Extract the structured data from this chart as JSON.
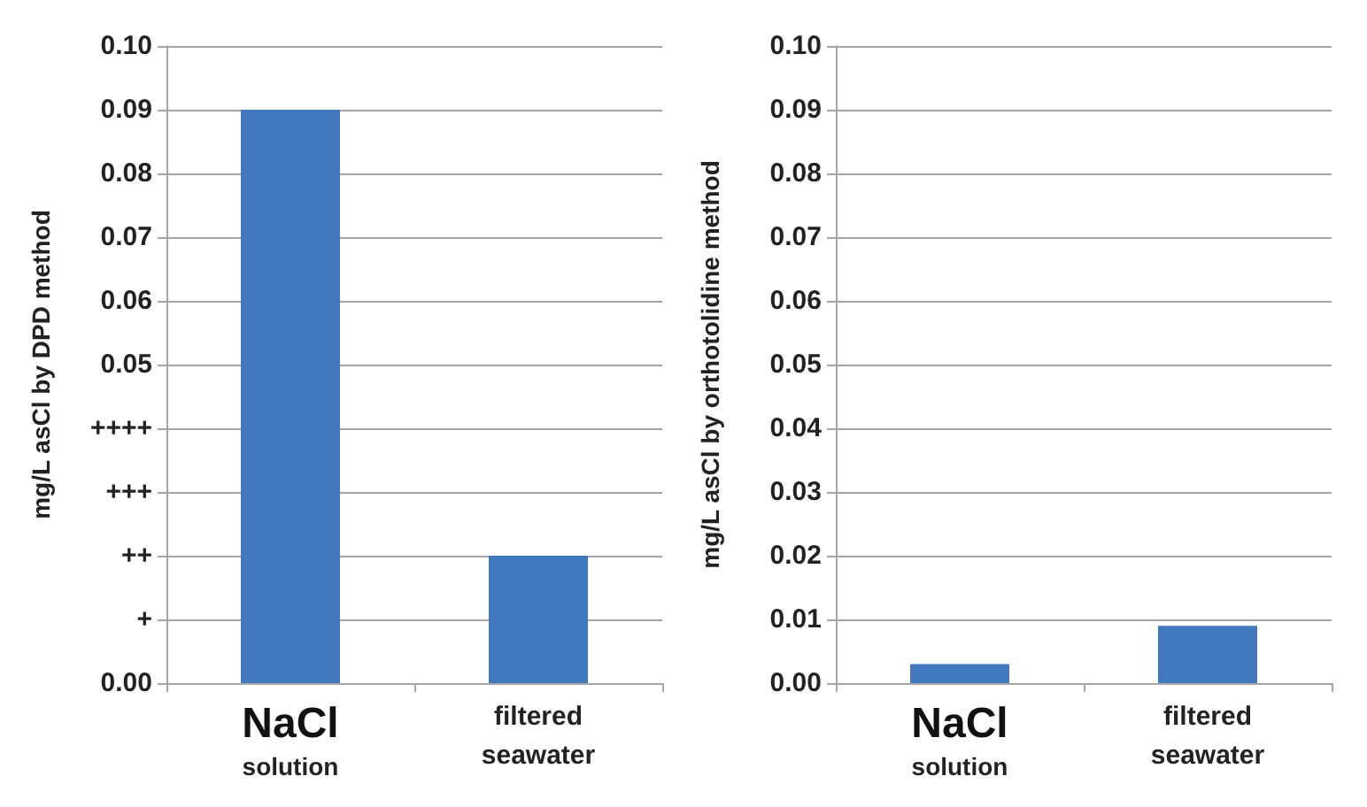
{
  "chart_data": [
    {
      "type": "bar",
      "ylabel": "mg/L asCl by DPD method",
      "categories": [
        "NaCl solution",
        "filtered seawater"
      ],
      "values": [
        0.09,
        0.02
      ],
      "color": "#4178be",
      "ylim": [
        0,
        0.1
      ],
      "yticks": [
        {
          "value": 0,
          "label": "0.00"
        },
        {
          "value": 0.01,
          "label": "+"
        },
        {
          "value": 0.02,
          "label": "++"
        },
        {
          "value": 0.03,
          "label": "+++"
        },
        {
          "value": 0.04,
          "label": "++++"
        },
        0.05,
        0.06,
        0.07,
        0.08,
        0.09,
        {
          "value": 0.1,
          "label": "0.10"
        }
      ],
      "grid": "y"
    },
    {
      "type": "bar",
      "ylabel": "mg/L asCl by orthotolidine method",
      "categories": [
        "NaCl solution",
        "filtered seawater"
      ],
      "values": [
        0.003,
        0.009
      ],
      "color": "#4178be",
      "ylim": [
        0,
        0.1
      ],
      "yticks": [
        {
          "value": 0,
          "label": "0.00"
        },
        0.01,
        0.02,
        0.03,
        0.04,
        0.05,
        0.06,
        0.07,
        0.08,
        0.09,
        {
          "value": 0.1,
          "label": "0.10"
        }
      ],
      "grid": "y"
    }
  ]
}
